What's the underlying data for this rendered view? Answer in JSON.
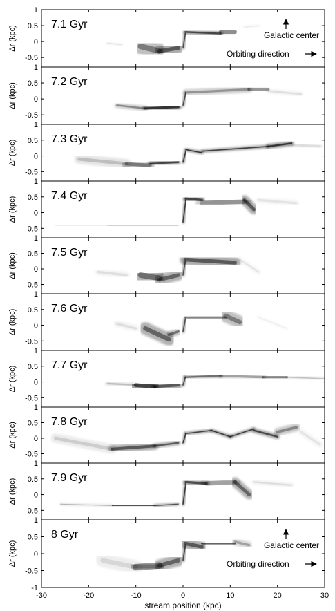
{
  "chart_data": {
    "type": "scatter",
    "xlabel": "stream position (kpc)",
    "ylabel": "Δr (kpc)",
    "xlim": [
      -30,
      30
    ],
    "ylim": [
      -0.8,
      1
    ],
    "ylim_last": [
      -1,
      1
    ],
    "xticks": [
      -30,
      -20,
      -10,
      0,
      10,
      20,
      30
    ],
    "yticks": [
      -0.5,
      0,
      0.5,
      1
    ],
    "yticks_last": [
      -1,
      -0.5,
      0,
      0.5,
      1
    ],
    "arrow_up_label": "Galactic center",
    "arrow_right_label": "Orbiting direction",
    "panels": [
      {
        "title": "7.1 Gyr",
        "annotated": true,
        "segments": [
          {
            "x": [
              -16,
              -13
            ],
            "y": [
              -0.05,
              -0.1
            ],
            "w": 0.1,
            "a": 0.08
          },
          {
            "x": [
              -9,
              -5
            ],
            "y": [
              -0.15,
              -0.3
            ],
            "w": 0.5,
            "a": 0.45
          },
          {
            "x": [
              -5,
              -1
            ],
            "y": [
              -0.3,
              -0.2
            ],
            "w": 0.35,
            "a": 0.6
          },
          {
            "x": [
              0,
              0.5
            ],
            "y": [
              -0.2,
              0.25
            ],
            "w": 0.1,
            "a": 0.7
          },
          {
            "x": [
              0.5,
              8
            ],
            "y": [
              0.3,
              0.25
            ],
            "w": 0.15,
            "a": 0.7
          },
          {
            "x": [
              8,
              11
            ],
            "y": [
              0.3,
              0.3
            ],
            "w": 0.35,
            "a": 0.55
          },
          {
            "x": [
              13,
              16
            ],
            "y": [
              0.45,
              0.5
            ],
            "w": 0.1,
            "a": 0.06
          }
        ]
      },
      {
        "title": "7.2 Gyr",
        "annotated": false,
        "segments": [
          {
            "x": [
              -14,
              -8
            ],
            "y": [
              -0.2,
              -0.3
            ],
            "w": 0.15,
            "a": 0.4
          },
          {
            "x": [
              -8,
              -1
            ],
            "y": [
              -0.3,
              -0.25
            ],
            "w": 0.2,
            "a": 0.8
          },
          {
            "x": [
              0,
              0.6
            ],
            "y": [
              -0.2,
              0.2
            ],
            "w": 0.1,
            "a": 0.7
          },
          {
            "x": [
              0.6,
              14
            ],
            "y": [
              0.2,
              0.3
            ],
            "w": 0.2,
            "a": 0.35
          },
          {
            "x": [
              14,
              18
            ],
            "y": [
              0.3,
              0.3
            ],
            "w": 0.3,
            "a": 0.5
          },
          {
            "x": [
              18,
              25
            ],
            "y": [
              0.25,
              0.15
            ],
            "w": 0.15,
            "a": 0.1
          }
        ]
      },
      {
        "title": "7.3 Gyr",
        "annotated": false,
        "segments": [
          {
            "x": [
              -22,
              -12
            ],
            "y": [
              -0.1,
              -0.25
            ],
            "w": 0.3,
            "a": 0.2
          },
          {
            "x": [
              -12,
              -7
            ],
            "y": [
              -0.25,
              -0.3
            ],
            "w": 0.3,
            "a": 0.45
          },
          {
            "x": [
              -7,
              -1
            ],
            "y": [
              -0.25,
              -0.2
            ],
            "w": 0.15,
            "a": 0.7
          },
          {
            "x": [
              0,
              0.6
            ],
            "y": [
              -0.2,
              0.15
            ],
            "w": 0.1,
            "a": 0.8
          },
          {
            "x": [
              0.6,
              4
            ],
            "y": [
              0.2,
              0.1
            ],
            "w": 0.1,
            "a": 0.8
          },
          {
            "x": [
              4,
              18
            ],
            "y": [
              0.15,
              0.3
            ],
            "w": 0.1,
            "a": 0.75
          },
          {
            "x": [
              18,
              23
            ],
            "y": [
              0.3,
              0.4
            ],
            "w": 0.15,
            "a": 0.8
          },
          {
            "x": [
              23,
              29
            ],
            "y": [
              0.35,
              0.3
            ],
            "w": 0.2,
            "a": 0.1
          }
        ]
      },
      {
        "title": "7.4 Gyr",
        "annotated": false,
        "segments": [
          {
            "x": [
              -27,
              -16
            ],
            "y": [
              -0.4,
              -0.4
            ],
            "w": 0.05,
            "a": 0.35
          },
          {
            "x": [
              -16,
              -1
            ],
            "y": [
              -0.4,
              -0.4
            ],
            "w": 0.06,
            "a": 0.9
          },
          {
            "x": [
              0,
              0.6
            ],
            "y": [
              -0.3,
              0.4
            ],
            "w": 0.1,
            "a": 0.8
          },
          {
            "x": [
              0.6,
              4
            ],
            "y": [
              0.45,
              0.4
            ],
            "w": 0.2,
            "a": 0.7
          },
          {
            "x": [
              4,
              13
            ],
            "y": [
              0.3,
              0.35
            ],
            "w": 0.4,
            "a": 0.35
          },
          {
            "x": [
              13,
              15
            ],
            "y": [
              0.4,
              0.1
            ],
            "w": 0.3,
            "a": 0.6
          },
          {
            "x": [
              16,
              24
            ],
            "y": [
              0.4,
              0.3
            ],
            "w": 0.2,
            "a": 0.08
          }
        ]
      },
      {
        "title": "7.5 Gyr",
        "annotated": false,
        "segments": [
          {
            "x": [
              -18,
              -12
            ],
            "y": [
              -0.1,
              -0.2
            ],
            "w": 0.2,
            "a": 0.1
          },
          {
            "x": [
              -9,
              -5
            ],
            "y": [
              -0.2,
              -0.3
            ],
            "w": 0.5,
            "a": 0.5
          },
          {
            "x": [
              -5,
              -1
            ],
            "y": [
              -0.35,
              -0.2
            ],
            "w": 0.35,
            "a": 0.55
          },
          {
            "x": [
              0,
              0.5
            ],
            "y": [
              -0.2,
              0.25
            ],
            "w": 0.1,
            "a": 0.7
          },
          {
            "x": [
              0.5,
              11
            ],
            "y": [
              0.3,
              0.2
            ],
            "w": 0.35,
            "a": 0.6
          },
          {
            "x": [
              12,
              16
            ],
            "y": [
              0.3,
              -0.1
            ],
            "w": 0.15,
            "a": 0.08
          }
        ]
      },
      {
        "title": "7.6 Gyr",
        "annotated": false,
        "segments": [
          {
            "x": [
              -14,
              -10
            ],
            "y": [
              0.05,
              -0.1
            ],
            "w": 0.2,
            "a": 0.1
          },
          {
            "x": [
              -8,
              -3
            ],
            "y": [
              -0.1,
              -0.45
            ],
            "w": 0.4,
            "a": 0.55
          },
          {
            "x": [
              -3,
              -1
            ],
            "y": [
              -0.3,
              -0.2
            ],
            "w": 0.2,
            "a": 0.5
          },
          {
            "x": [
              0,
              0.5
            ],
            "y": [
              -0.2,
              0.2
            ],
            "w": 0.1,
            "a": 0.7
          },
          {
            "x": [
              0.5,
              9
            ],
            "y": [
              0.25,
              0.25
            ],
            "w": 0.2,
            "a": 0.6
          },
          {
            "x": [
              9,
              12
            ],
            "y": [
              0.3,
              0.1
            ],
            "w": 0.4,
            "a": 0.45
          },
          {
            "x": [
              16,
              22
            ],
            "y": [
              0.25,
              -0.1
            ],
            "w": 0.1,
            "a": 0.05
          }
        ]
      },
      {
        "title": "7.7 Gyr",
        "annotated": false,
        "segments": [
          {
            "x": [
              -16,
              -10
            ],
            "y": [
              -0.05,
              -0.1
            ],
            "w": 0.15,
            "a": 0.2
          },
          {
            "x": [
              -10,
              -6
            ],
            "y": [
              -0.1,
              -0.15
            ],
            "w": 0.35,
            "a": 0.7
          },
          {
            "x": [
              -6,
              -1
            ],
            "y": [
              -0.15,
              -0.1
            ],
            "w": 0.25,
            "a": 0.6
          },
          {
            "x": [
              0,
              0.5
            ],
            "y": [
              -0.1,
              0.15
            ],
            "w": 0.1,
            "a": 0.7
          },
          {
            "x": [
              0.5,
              8
            ],
            "y": [
              0.15,
              0.2
            ],
            "w": 0.15,
            "a": 0.5
          },
          {
            "x": [
              8,
              17
            ],
            "y": [
              0.2,
              0.15
            ],
            "w": 0.2,
            "a": 0.3
          },
          {
            "x": [
              17,
              22
            ],
            "y": [
              0.15,
              0.15
            ],
            "w": 0.2,
            "a": 0.6
          },
          {
            "x": [
              22,
              30
            ],
            "y": [
              0.15,
              0.1
            ],
            "w": 0.1,
            "a": 0.2
          }
        ]
      },
      {
        "title": "7.8 Gyr",
        "annotated": false,
        "segments": [
          {
            "x": [
              -27,
              -15
            ],
            "y": [
              0.0,
              -0.35
            ],
            "w": 0.3,
            "a": 0.15
          },
          {
            "x": [
              -15,
              -6
            ],
            "y": [
              -0.35,
              -0.25
            ],
            "w": 0.25,
            "a": 0.6
          },
          {
            "x": [
              -6,
              -1
            ],
            "y": [
              -0.25,
              -0.15
            ],
            "w": 0.15,
            "a": 0.6
          },
          {
            "x": [
              0,
              0.6
            ],
            "y": [
              -0.15,
              0.15
            ],
            "w": 0.1,
            "a": 0.8
          },
          {
            "x": [
              0.6,
              6
            ],
            "y": [
              0.15,
              0.25
            ],
            "w": 0.1,
            "a": 0.75
          },
          {
            "x": [
              6,
              10
            ],
            "y": [
              0.25,
              0.05
            ],
            "w": 0.1,
            "a": 0.8
          },
          {
            "x": [
              10,
              15
            ],
            "y": [
              0.05,
              0.3
            ],
            "w": 0.1,
            "a": 0.75
          },
          {
            "x": [
              15,
              20
            ],
            "y": [
              0.25,
              0.05
            ],
            "w": 0.15,
            "a": 0.7
          },
          {
            "x": [
              20,
              24
            ],
            "y": [
              0.2,
              0.35
            ],
            "w": 0.25,
            "a": 0.4
          },
          {
            "x": [
              25,
              29
            ],
            "y": [
              0.2,
              -0.2
            ],
            "w": 0.2,
            "a": 0.08
          }
        ]
      },
      {
        "title": "7.9 Gyr",
        "annotated": false,
        "segments": [
          {
            "x": [
              -26,
              -15
            ],
            "y": [
              -0.3,
              -0.35
            ],
            "w": 0.05,
            "a": 0.3
          },
          {
            "x": [
              -15,
              -6
            ],
            "y": [
              -0.35,
              -0.35
            ],
            "w": 0.08,
            "a": 0.85
          },
          {
            "x": [
              -6,
              -1
            ],
            "y": [
              -0.35,
              -0.3
            ],
            "w": 0.08,
            "a": 0.7
          },
          {
            "x": [
              0,
              0.6
            ],
            "y": [
              -0.3,
              0.35
            ],
            "w": 0.1,
            "a": 0.8
          },
          {
            "x": [
              0.6,
              5
            ],
            "y": [
              0.4,
              0.35
            ],
            "w": 0.2,
            "a": 0.65
          },
          {
            "x": [
              5,
              11
            ],
            "y": [
              0.35,
              0.4
            ],
            "w": 0.4,
            "a": 0.3
          },
          {
            "x": [
              11,
              14
            ],
            "y": [
              0.4,
              0.0
            ],
            "w": 0.3,
            "a": 0.55
          },
          {
            "x": [
              15,
              23
            ],
            "y": [
              0.4,
              0.3
            ],
            "w": 0.15,
            "a": 0.1
          }
        ]
      },
      {
        "title": "8 Gyr",
        "annotated": true,
        "segments": [
          {
            "x": [
              -17,
              -10
            ],
            "y": [
              -0.2,
              -0.4
            ],
            "w": 0.4,
            "a": 0.12
          },
          {
            "x": [
              -10,
              -5
            ],
            "y": [
              -0.4,
              -0.35
            ],
            "w": 0.55,
            "a": 0.5
          },
          {
            "x": [
              -5,
              -1
            ],
            "y": [
              -0.35,
              -0.2
            ],
            "w": 0.35,
            "a": 0.55
          },
          {
            "x": [
              0,
              0.5
            ],
            "y": [
              -0.2,
              0.25
            ],
            "w": 0.1,
            "a": 0.7
          },
          {
            "x": [
              0.5,
              4
            ],
            "y": [
              0.3,
              0.2
            ],
            "w": 0.3,
            "a": 0.6
          },
          {
            "x": [
              4,
              11
            ],
            "y": [
              0.3,
              0.3
            ],
            "w": 0.15,
            "a": 0.75
          },
          {
            "x": [
              11,
              14
            ],
            "y": [
              0.35,
              0.25
            ],
            "w": 0.2,
            "a": 0.3
          }
        ]
      }
    ]
  }
}
